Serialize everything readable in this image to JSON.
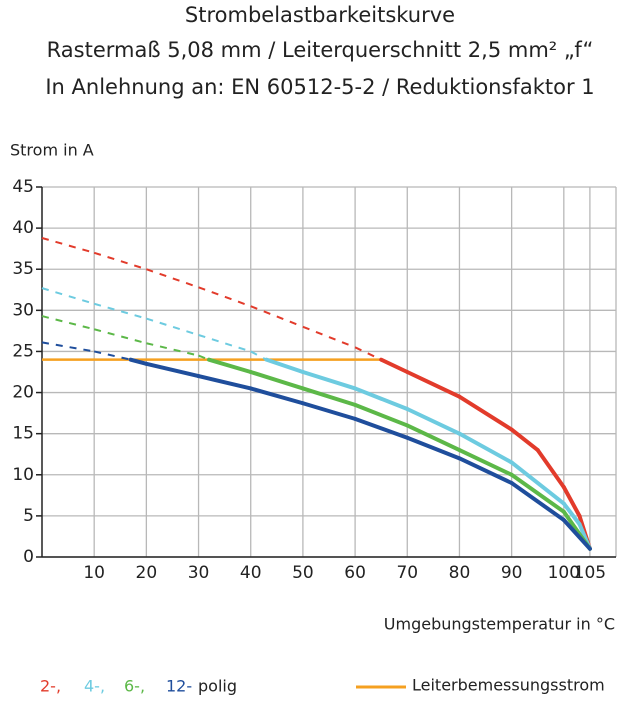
{
  "chart_data": {
    "type": "line",
    "title": "Strombelastbarkeitskurve",
    "subtitle": "Rastermaß 5,08 mm / Leiterquerschnitt 2,5 mm² „f“",
    "subtitle2": "In Anlehnung an: EN 60512-5-2 / Reduktionsfaktor 1",
    "y_label": "Strom in A",
    "x_label": "Umgebungstemperatur in °C",
    "xlim": [
      0,
      110
    ],
    "ylim": [
      0,
      45
    ],
    "xticks": [
      10,
      20,
      30,
      40,
      50,
      60,
      70,
      80,
      90,
      100,
      105
    ],
    "yticks": [
      0,
      5,
      10,
      15,
      20,
      25,
      30,
      35,
      40,
      45
    ],
    "grid": true,
    "legend_suffix": "polig",
    "series": [
      {
        "name": "2-,",
        "color": "#e23b2b",
        "x": [
          0,
          10,
          20,
          30,
          40,
          50,
          60,
          65,
          70,
          80,
          90,
          95,
          100,
          103,
          105
        ],
        "values": [
          38.8,
          37,
          35,
          32.8,
          30.5,
          28,
          25.5,
          24,
          22.5,
          19.5,
          15.5,
          13,
          8.5,
          5,
          1
        ]
      },
      {
        "name": "4-,",
        "color": "#6dcbe0",
        "x": [
          0,
          10,
          20,
          30,
          40,
          43,
          50,
          60,
          70,
          80,
          90,
          100,
          103,
          105
        ],
        "values": [
          32.7,
          30.8,
          29,
          27,
          25,
          24,
          22.5,
          20.5,
          18,
          15,
          11.5,
          6.5,
          4,
          1
        ]
      },
      {
        "name": "6-,",
        "color": "#5cb848",
        "x": [
          0,
          10,
          20,
          30,
          32,
          40,
          50,
          60,
          70,
          80,
          90,
          100,
          105
        ],
        "values": [
          29.3,
          27.7,
          26,
          24.5,
          24,
          22.5,
          20.5,
          18.5,
          16,
          13,
          10,
          5.5,
          1
        ]
      },
      {
        "name": "12-",
        "color": "#1f4e9c",
        "x": [
          0,
          10,
          17,
          20,
          30,
          40,
          50,
          60,
          70,
          80,
          90,
          100,
          105
        ],
        "values": [
          26.1,
          25,
          24,
          23.5,
          22,
          20.5,
          18.7,
          16.8,
          14.5,
          12,
          9,
          4.5,
          1
        ]
      }
    ],
    "reference": {
      "name": "Leiterbemessungsstrom",
      "color": "#f5a020",
      "x": [
        0,
        65
      ],
      "values": [
        24,
        24
      ]
    }
  }
}
